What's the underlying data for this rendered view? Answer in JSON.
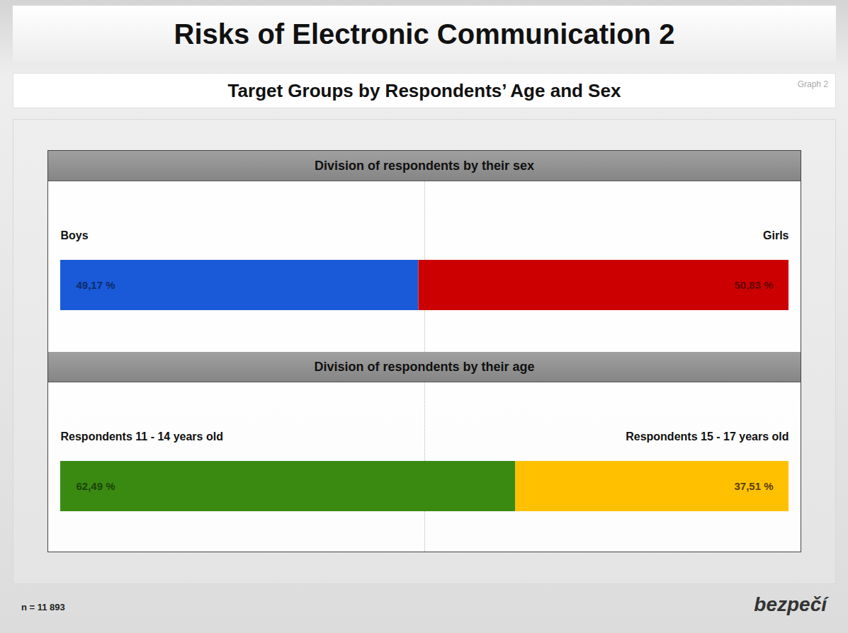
{
  "header": {
    "title": "Risks of Electronic Communication 2",
    "subtitle": "Target Groups by Respondents’ Age and Sex",
    "graph_label": "Graph 2"
  },
  "footer": {
    "note": "n = 11 893",
    "logo": "bezpečí"
  },
  "chart_data": [
    {
      "type": "bar",
      "title": "Division of respondents by their sex",
      "orientation": "horizontal",
      "stacked": true,
      "data_labels": true,
      "tick_labels": false,
      "categories": [
        null
      ],
      "xlim": [
        0,
        100
      ],
      "series": [
        {
          "name": "Boys",
          "color": "#1a5ad8",
          "values": [
            49.17
          ],
          "value_labels": [
            "49,17 %"
          ]
        },
        {
          "name": "Girls",
          "color": "#cc0000",
          "values": [
            50.83
          ],
          "value_labels": [
            "50,83 %"
          ]
        }
      ]
    },
    {
      "type": "bar",
      "title": "Division of respondents by their age",
      "orientation": "horizontal",
      "stacked": true,
      "data_labels": true,
      "tick_labels": false,
      "categories": [
        null
      ],
      "xlim": [
        0,
        100
      ],
      "series": [
        {
          "name": "Respondents 11 - 14 years old",
          "color": "#3a8a12",
          "values": [
            62.49
          ],
          "value_labels": [
            "62,49 %"
          ]
        },
        {
          "name": "Respondents 15 - 17 years old",
          "color": "#ffc000",
          "values": [
            37.51
          ],
          "value_labels": [
            "37,51 %"
          ]
        }
      ]
    }
  ]
}
